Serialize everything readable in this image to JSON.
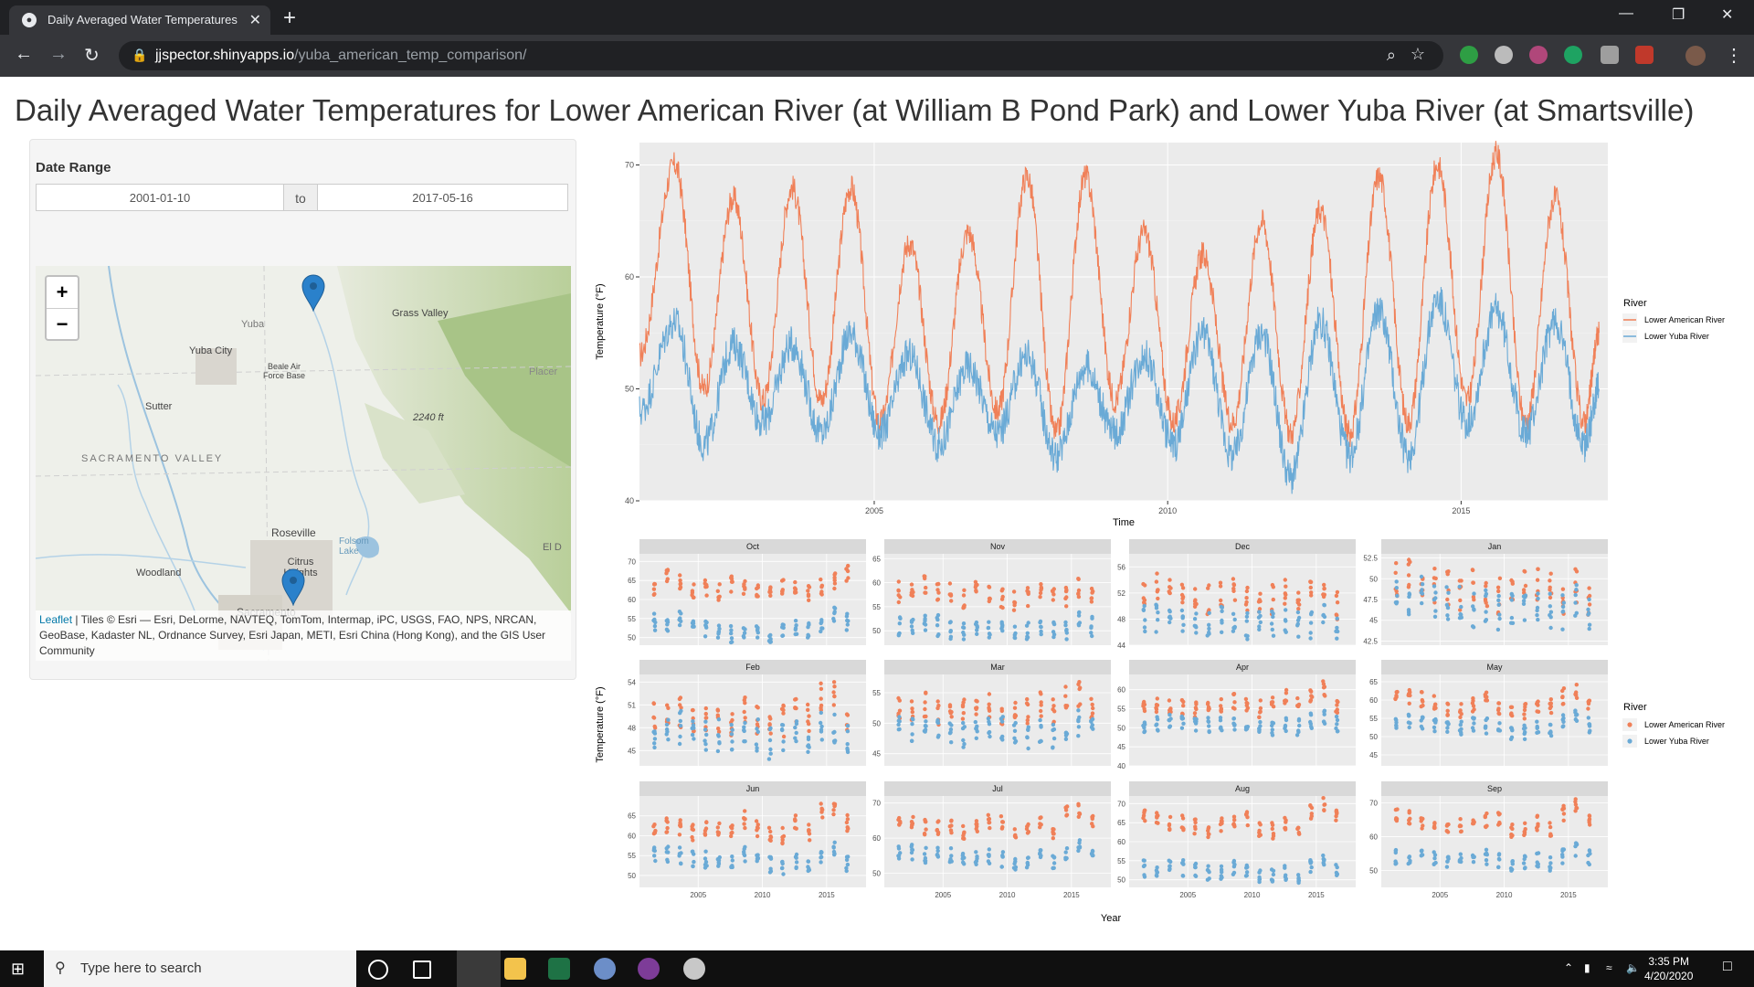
{
  "browser": {
    "tab_title": "Daily Averaged Water Temperatures for",
    "new_tab": "+",
    "url_host": "jjspector.shinyapps.io",
    "url_path": "/yuba_american_temp_comparison/"
  },
  "page": {
    "title": "Daily Averaged Water Temperatures for Lower American River (at William B Pond Park) and Lower Yuba River (at Smartsville)"
  },
  "date_range": {
    "label": "Date Range",
    "start": "2001-01-10",
    "sep": "to",
    "end": "2017-05-16"
  },
  "map": {
    "zoom_in": "+",
    "zoom_out": "−",
    "labels": [
      "Grass Valley",
      "Yuba City",
      "Beale Air Force Base",
      "Sutter",
      "SACRAMENTO VALLEY",
      "2240 ft",
      "Roseville",
      "Citrus Heights",
      "Woodland",
      "Sacramento",
      "Folsom Lake",
      "Placer",
      "Yuba",
      "El D"
    ],
    "attribution_link": "Leaflet",
    "attribution_text": " | Tiles © Esri — Esri, DeLorme, NAVTEQ, TomTom, Intermap, iPC, USGS, FAO, NPS, NRCAN, GeoBase, Kadaster NL, Ordnance Survey, Esri Japan, METI, Esri China (Hong Kong), and the GIS User Community"
  },
  "chart_data": [
    {
      "type": "line",
      "xlabel": "Time",
      "ylabel": "Temperature (°F)",
      "ylim": [
        40,
        72
      ],
      "yticks": [
        40,
        50,
        60,
        70
      ],
      "xticks": [
        2005,
        2010,
        2015
      ],
      "xlim": [
        2001.0,
        2017.5
      ],
      "legend_title": "River",
      "legend_position": "right",
      "series": [
        {
          "name": "Lower American River",
          "color": "#f08058",
          "x": [
            2001.0,
            2001.6,
            2002.1,
            2002.6,
            2003.1,
            2003.6,
            2004.1,
            2004.6,
            2005.1,
            2005.6,
            2006.1,
            2006.6,
            2007.1,
            2007.6,
            2008.1,
            2008.6,
            2009.1,
            2009.6,
            2010.1,
            2010.6,
            2011.1,
            2011.6,
            2012.1,
            2012.6,
            2013.1,
            2013.6,
            2014.1,
            2014.6,
            2015.1,
            2015.6,
            2016.1,
            2016.6,
            2017.1,
            2017.35
          ],
          "values": [
            53,
            70,
            50,
            67,
            49,
            68,
            49,
            68,
            47,
            63,
            47,
            64,
            48,
            69,
            46,
            69,
            49,
            64,
            47,
            62,
            47,
            65,
            46,
            66,
            46,
            69,
            47,
            70,
            49,
            71,
            47,
            67,
            47,
            55
          ]
        },
        {
          "name": "Lower Yuba River",
          "color": "#6aaad6",
          "x": [
            2001.0,
            2001.6,
            2002.1,
            2002.6,
            2003.1,
            2003.6,
            2004.1,
            2004.6,
            2005.1,
            2005.6,
            2006.1,
            2006.6,
            2007.1,
            2007.6,
            2008.1,
            2008.6,
            2009.1,
            2009.6,
            2010.1,
            2010.6,
            2011.1,
            2011.6,
            2012.1,
            2012.6,
            2013.1,
            2013.6,
            2014.1,
            2014.6,
            2015.1,
            2015.6,
            2016.1,
            2016.6,
            2017.1,
            2017.35
          ],
          "values": [
            48,
            56,
            45,
            54,
            47,
            54,
            46,
            55,
            46,
            53,
            45,
            52,
            46,
            53,
            44,
            52,
            46,
            53,
            45,
            55,
            44,
            55,
            42,
            56,
            44,
            57,
            44,
            58,
            47,
            57,
            46,
            56,
            45,
            50
          ]
        }
      ]
    },
    {
      "type": "scatter",
      "xlabel": "Year",
      "ylabel": "Temperature (°F)",
      "legend_title": "River",
      "legend_position": "right",
      "series_names": [
        "Lower American River",
        "Lower Yuba River"
      ],
      "colors": [
        "#f08058",
        "#6aaad6"
      ],
      "xticks": [
        2005,
        2010,
        2015
      ],
      "panels": [
        {
          "month": "Oct",
          "yticks": [
            50,
            55,
            60,
            65,
            70
          ],
          "ylim": [
            48,
            72
          ],
          "american": [
            62,
            66,
            65,
            62,
            63,
            62,
            64,
            63,
            62,
            62,
            63,
            64,
            62,
            63,
            65,
            67
          ],
          "yuba": [
            54,
            54,
            55,
            53,
            52,
            52,
            51,
            52,
            52,
            51,
            52,
            53,
            52,
            53,
            56,
            54
          ]
        },
        {
          "month": "Nov",
          "yticks": [
            50,
            55,
            60,
            65
          ],
          "ylim": [
            47,
            66
          ],
          "american": [
            58,
            59,
            60,
            58,
            58,
            57,
            58,
            58,
            57,
            56,
            57,
            58,
            57,
            57,
            59,
            57
          ],
          "yuba": [
            51,
            51,
            52,
            51,
            50,
            50,
            50,
            50,
            50,
            49,
            50,
            51,
            50,
            50,
            52,
            51
          ]
        },
        {
          "month": "Dec",
          "yticks": [
            44,
            48,
            52,
            56
          ],
          "ylim": [
            44,
            58
          ],
          "american": [
            52,
            53,
            54,
            52,
            52,
            51,
            52,
            52,
            51,
            51,
            51,
            52,
            51,
            52,
            53,
            50
          ],
          "yuba": [
            48,
            48,
            49,
            48,
            48,
            47,
            48,
            48,
            47,
            47,
            47,
            48,
            47,
            47,
            48,
            47
          ]
        },
        {
          "month": "Jan",
          "yticks": [
            42.5,
            45.0,
            47.5,
            50.0,
            52.5
          ],
          "ylim": [
            42,
            53
          ],
          "american": [
            50,
            51,
            50,
            49,
            49,
            48,
            49,
            48,
            48,
            48,
            49,
            49,
            49,
            48,
            49,
            47
          ],
          "yuba": [
            48,
            47,
            48,
            47,
            47,
            47,
            46,
            47,
            46,
            46,
            46,
            47,
            46,
            46,
            47,
            46
          ]
        },
        {
          "month": "Feb",
          "yticks": [
            45,
            48,
            51,
            54
          ],
          "ylim": [
            43,
            55
          ],
          "american": [
            49,
            49,
            50,
            49,
            49,
            49,
            49,
            50,
            49,
            49,
            49,
            50,
            49,
            52,
            52,
            49
          ],
          "yuba": [
            47,
            47,
            48,
            47,
            47,
            47,
            47,
            47,
            47,
            46,
            47,
            47,
            47,
            48,
            48,
            47
          ]
        },
        {
          "month": "Mar",
          "yticks": [
            45,
            50,
            55
          ],
          "ylim": [
            43,
            58
          ],
          "american": [
            52,
            52,
            53,
            52,
            52,
            52,
            53,
            53,
            52,
            52,
            52,
            53,
            52,
            54,
            55,
            53
          ],
          "yuba": [
            49,
            49,
            50,
            49,
            49,
            48,
            49,
            49,
            49,
            48,
            48,
            49,
            48,
            49,
            50,
            49
          ]
        },
        {
          "month": "Apr",
          "yticks": [
            40,
            45,
            50,
            55,
            60
          ],
          "ylim": [
            40,
            64
          ],
          "american": [
            55,
            56,
            56,
            55,
            55,
            56,
            56,
            57,
            56,
            55,
            56,
            58,
            56,
            59,
            60,
            56
          ],
          "yuba": [
            51,
            51,
            52,
            51,
            51,
            51,
            51,
            51,
            51,
            50,
            50,
            51,
            50,
            52,
            53,
            51
          ]
        },
        {
          "month": "May",
          "yticks": [
            45,
            50,
            55,
            60,
            65
          ],
          "ylim": [
            42,
            67
          ],
          "american": [
            60,
            61,
            60,
            59,
            58,
            57,
            59,
            60,
            58,
            57,
            57,
            59,
            58,
            61,
            62,
            58
          ],
          "yuba": [
            54,
            54,
            54,
            53,
            52,
            52,
            53,
            53,
            52,
            51,
            51,
            53,
            52,
            54,
            55,
            53
          ]
        },
        {
          "month": "Jun",
          "yticks": [
            50,
            55,
            60,
            65
          ],
          "ylim": [
            47,
            70
          ],
          "american": [
            62,
            63,
            62,
            61,
            62,
            61,
            62,
            64,
            62,
            60,
            60,
            63,
            61,
            66,
            67,
            63
          ],
          "yuba": [
            55,
            55,
            55,
            54,
            54,
            53,
            54,
            55,
            54,
            53,
            52,
            54,
            53,
            55,
            57,
            53
          ]
        },
        {
          "month": "Jul",
          "yticks": [
            50,
            60,
            70
          ],
          "ylim": [
            46,
            72
          ],
          "american": [
            64,
            64,
            63,
            63,
            63,
            62,
            63,
            65,
            64,
            62,
            62,
            64,
            62,
            67,
            68,
            65
          ],
          "yuba": [
            56,
            56,
            55,
            55,
            55,
            54,
            54,
            55,
            54,
            53,
            53,
            55,
            53,
            56,
            58,
            56
          ]
        },
        {
          "month": "Aug",
          "yticks": [
            50,
            55,
            60,
            65,
            70
          ],
          "ylim": [
            48,
            72
          ],
          "american": [
            66,
            66,
            65,
            65,
            64,
            63,
            64,
            66,
            66,
            63,
            63,
            65,
            63,
            68,
            70,
            67
          ],
          "yuba": [
            53,
            53,
            53,
            53,
            52,
            52,
            52,
            53,
            52,
            51,
            51,
            52,
            51,
            53,
            55,
            53
          ]
        },
        {
          "month": "Sep",
          "yticks": [
            50,
            60,
            70
          ],
          "ylim": [
            45,
            72
          ],
          "american": [
            66,
            66,
            64,
            64,
            63,
            63,
            63,
            65,
            65,
            62,
            62,
            64,
            62,
            67,
            69,
            65
          ],
          "yuba": [
            54,
            54,
            54,
            54,
            53,
            53,
            53,
            54,
            53,
            52,
            52,
            53,
            52,
            54,
            56,
            54
          ]
        }
      ]
    }
  ],
  "taskbar": {
    "search_placeholder": "Type here to search",
    "time": "3:35 PM",
    "date": "4/20/2020"
  }
}
